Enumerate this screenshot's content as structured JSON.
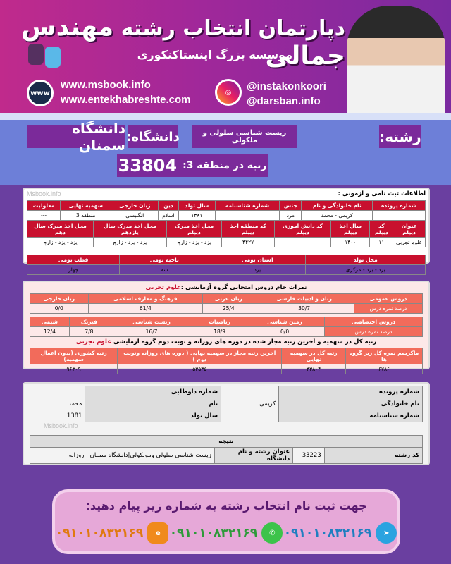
{
  "header": {
    "title_a": "دپارتمان انتخاب رشته",
    "title_b": "مهندس جمالی",
    "institute": "موسسه بزرگ اینستاکنکوری",
    "site1": "www.msbook.info",
    "site2": "www.entekhabreshte.com",
    "insta1": "@instakonkoori",
    "insta2": "@darsban.info",
    "www_icon_label": "www"
  },
  "summary": {
    "major_label": "رشته:",
    "major": "زیست شناسی سلولی و ملکولی",
    "uni_label": "دانشگاه:",
    "uni": "دانشگاه سمنان",
    "rank_label": "رتبه در منطقه 3:",
    "rank": "33804"
  },
  "watermark": "Msbook.info",
  "registration": {
    "title": "اطلاعات ثبت نامی و آزمونی :",
    "t1": {
      "headers": [
        "شماره پرونده",
        "نام خانوادگی و نام",
        "جنس",
        "شماره شناسنامه",
        "سال تولد",
        "دین",
        "زبان خارجی",
        "سهمیه نهایی",
        "معلولیت"
      ],
      "values": [
        "",
        "کریمی - محمد",
        "مرد",
        "",
        "۱۳۸۱",
        "اسلام",
        "انگلیسی",
        "منطقه 3",
        "---"
      ]
    },
    "t2": {
      "headers": [
        "عنوان دیپلم",
        "کد دیپلم",
        "سال اخذ دیپلم",
        "کد دانش آموزی دیپلم",
        "کد منطقه اخذ دیپلم",
        "محل اخذ مدرک دیپلم",
        "محل اخذ مدرک سال یازدهم",
        "محل اخذ مدرک سال دهم"
      ],
      "values": [
        "علوم تجربی",
        "۱۱",
        "۱۴۰۰",
        "",
        "۴۴۲۷",
        "یزد - یزد - زارچ",
        "یزد - یزد - زارچ",
        "یزد - یزد - زارچ"
      ]
    },
    "t3": {
      "headers": [
        "محل تولد",
        "استان بومی",
        "ناحیه بومی",
        "قطب بومی"
      ],
      "values": [
        "یزد - یزد - مرکزی",
        "یزد",
        "سه",
        "چهار"
      ]
    }
  },
  "scores": {
    "title": "نمرات خام دروس امتحانی گروه آزمایشی :",
    "group": "علوم تجربی",
    "general": {
      "headers": [
        "دروس عمومی",
        "زبان و ادبیات فارسی",
        "زبان عربی",
        "فرهنگ و معارف اسلامی",
        "زبان خارجی"
      ],
      "values": [
        "درصد نمره درس",
        "30/7",
        "25/4",
        "61/4",
        "0/0"
      ]
    },
    "special": {
      "headers": [
        "دروس اختصاصی",
        "زمین شناسی",
        "ریاضیات",
        "زیست شناسی",
        "فیزیک",
        "شیمی"
      ],
      "values": [
        "درصد نمره درس",
        "0/0",
        "18/9",
        "16/7",
        "7/8",
        "12/4"
      ]
    },
    "rank_title": "رتبه کل در سهمیه و آخرین رتبه مجاز شده در دوره های روزانه و نوبت دوم گروه آزمایشی",
    "rank_group": "علوم تجربی",
    "ranks": {
      "headers": [
        "ماکزیمم نمره کل زیر گروه ها",
        "رتبه کل در سهمیه نهایی",
        "آخرین رتبه مجاز در سهمیه نهایی ( دوره های روزانه ونوبت دوم )",
        "رتبه کشوری (بدون اعمال سهمیه)"
      ],
      "values": [
        "۶۷۸۶",
        "۳۳۸۰۴",
        "۵۳۵۳۵",
        "۹۶۳۰۹"
      ]
    }
  },
  "result": {
    "rows": [
      [
        "شماره پرونده",
        "",
        "شماره داوطلبی",
        ""
      ],
      [
        "نام خانوادگی",
        "کریمی",
        "نام",
        "محمد"
      ],
      [
        "شماره شناسنامه",
        "",
        "سال تولد",
        "1381"
      ]
    ],
    "result_title": "نتیجه",
    "code_label": "کد رشته",
    "code": "33223",
    "field_label": "عنوان رشته و نام دانشگاه",
    "field": "زیست شناسی سلولی ومولکولی|دانشگاه سمنان | روزانه"
  },
  "contact": {
    "title": "جهت ثبت نام انتخاب رشته به شماره زیر پیام دهید:",
    "telegram": "۰۹۱۰۱۰۸۳۲۱۶۹",
    "whatsapp": "۰۹۱۰۱۰۸۳۲۱۶۹",
    "eitaa": "۰۹۱۰۱۰۸۳۲۱۶۹"
  },
  "colors": {
    "header": "#b02a94",
    "mid": "#6d7fd8",
    "pill": "#7b2a9a",
    "table_red": "#c8102e",
    "table_salmon": "#f26b5b"
  }
}
